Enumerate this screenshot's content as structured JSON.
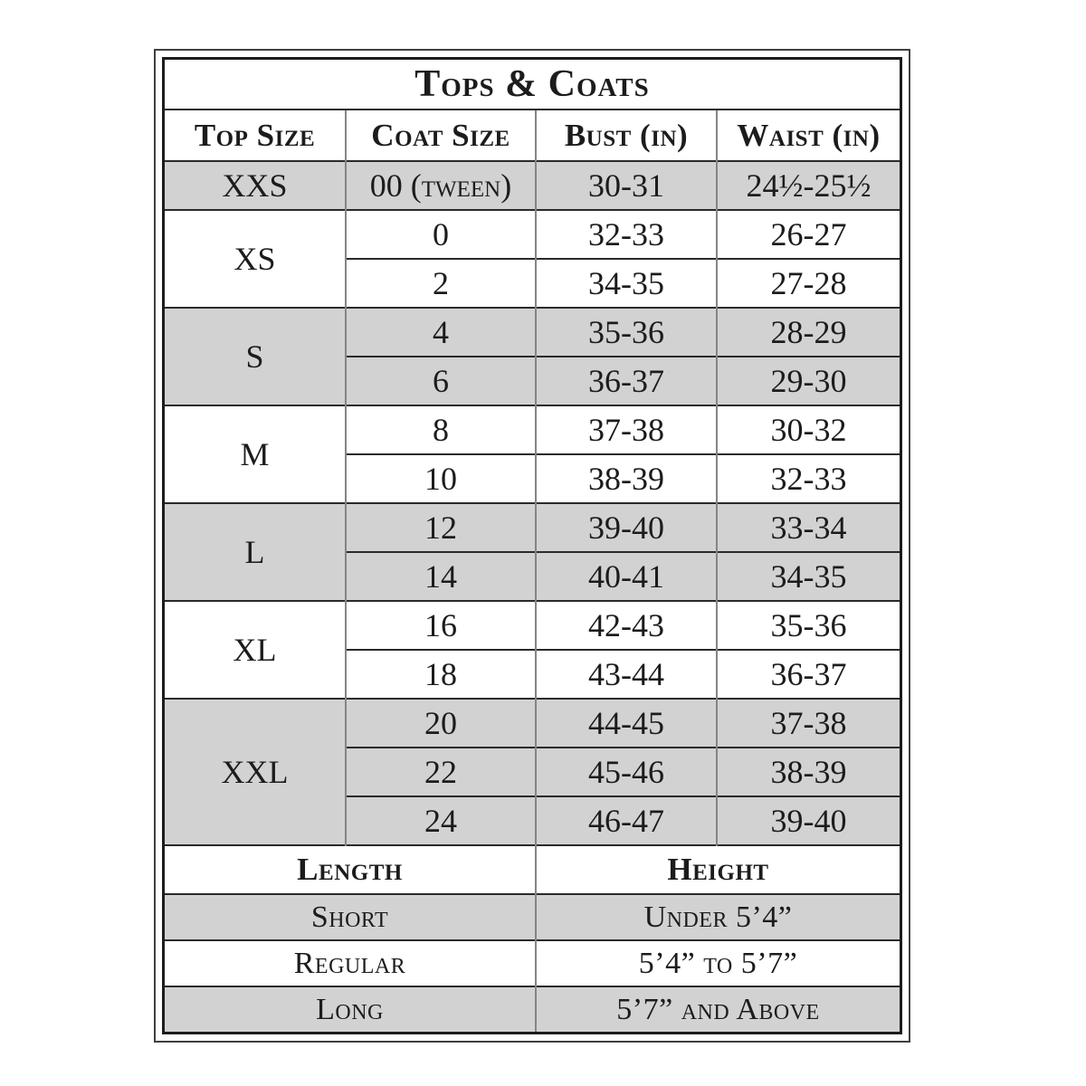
{
  "chart_data": {
    "type": "table",
    "title": "Tops & Coats",
    "columns": [
      "Top Size",
      "Coat Size",
      "Bust (in)",
      "Waist (in)"
    ],
    "groups": [
      {
        "top_size": "XXS",
        "shaded": true,
        "rows": [
          {
            "coat_size": "00 (tween)",
            "bust": "30-31",
            "waist": "24½-25½"
          }
        ]
      },
      {
        "top_size": "XS",
        "shaded": false,
        "rows": [
          {
            "coat_size": "0",
            "bust": "32-33",
            "waist": "26-27"
          },
          {
            "coat_size": "2",
            "bust": "34-35",
            "waist": "27-28"
          }
        ]
      },
      {
        "top_size": "S",
        "shaded": true,
        "rows": [
          {
            "coat_size": "4",
            "bust": "35-36",
            "waist": "28-29"
          },
          {
            "coat_size": "6",
            "bust": "36-37",
            "waist": "29-30"
          }
        ]
      },
      {
        "top_size": "M",
        "shaded": false,
        "rows": [
          {
            "coat_size": "8",
            "bust": "37-38",
            "waist": "30-32"
          },
          {
            "coat_size": "10",
            "bust": "38-39",
            "waist": "32-33"
          }
        ]
      },
      {
        "top_size": "L",
        "shaded": true,
        "rows": [
          {
            "coat_size": "12",
            "bust": "39-40",
            "waist": "33-34"
          },
          {
            "coat_size": "14",
            "bust": "40-41",
            "waist": "34-35"
          }
        ]
      },
      {
        "top_size": "XL",
        "shaded": false,
        "rows": [
          {
            "coat_size": "16",
            "bust": "42-43",
            "waist": "35-36"
          },
          {
            "coat_size": "18",
            "bust": "43-44",
            "waist": "36-37"
          }
        ]
      },
      {
        "top_size": "XXL",
        "shaded": true,
        "rows": [
          {
            "coat_size": "20",
            "bust": "44-45",
            "waist": "37-38"
          },
          {
            "coat_size": "22",
            "bust": "45-46",
            "waist": "38-39"
          },
          {
            "coat_size": "24",
            "bust": "46-47",
            "waist": "39-40"
          }
        ]
      }
    ],
    "bottom": {
      "headers": {
        "length": "Length",
        "height": "Height"
      },
      "rows": [
        {
          "length": "Short",
          "height": "Under 5’4”"
        },
        {
          "length": "Regular",
          "height": "5’4” to 5’7”"
        },
        {
          "length": "Long",
          "height": "5’7” and Above"
        }
      ]
    }
  },
  "colors": {
    "shaded_row": "#d2d2d2",
    "frame_border": "#1c1c1c",
    "horizontal_grid": "#2a2a2a",
    "vertical_grid": "#858585",
    "text": "#1c1c1c",
    "background": "#ffffff"
  }
}
